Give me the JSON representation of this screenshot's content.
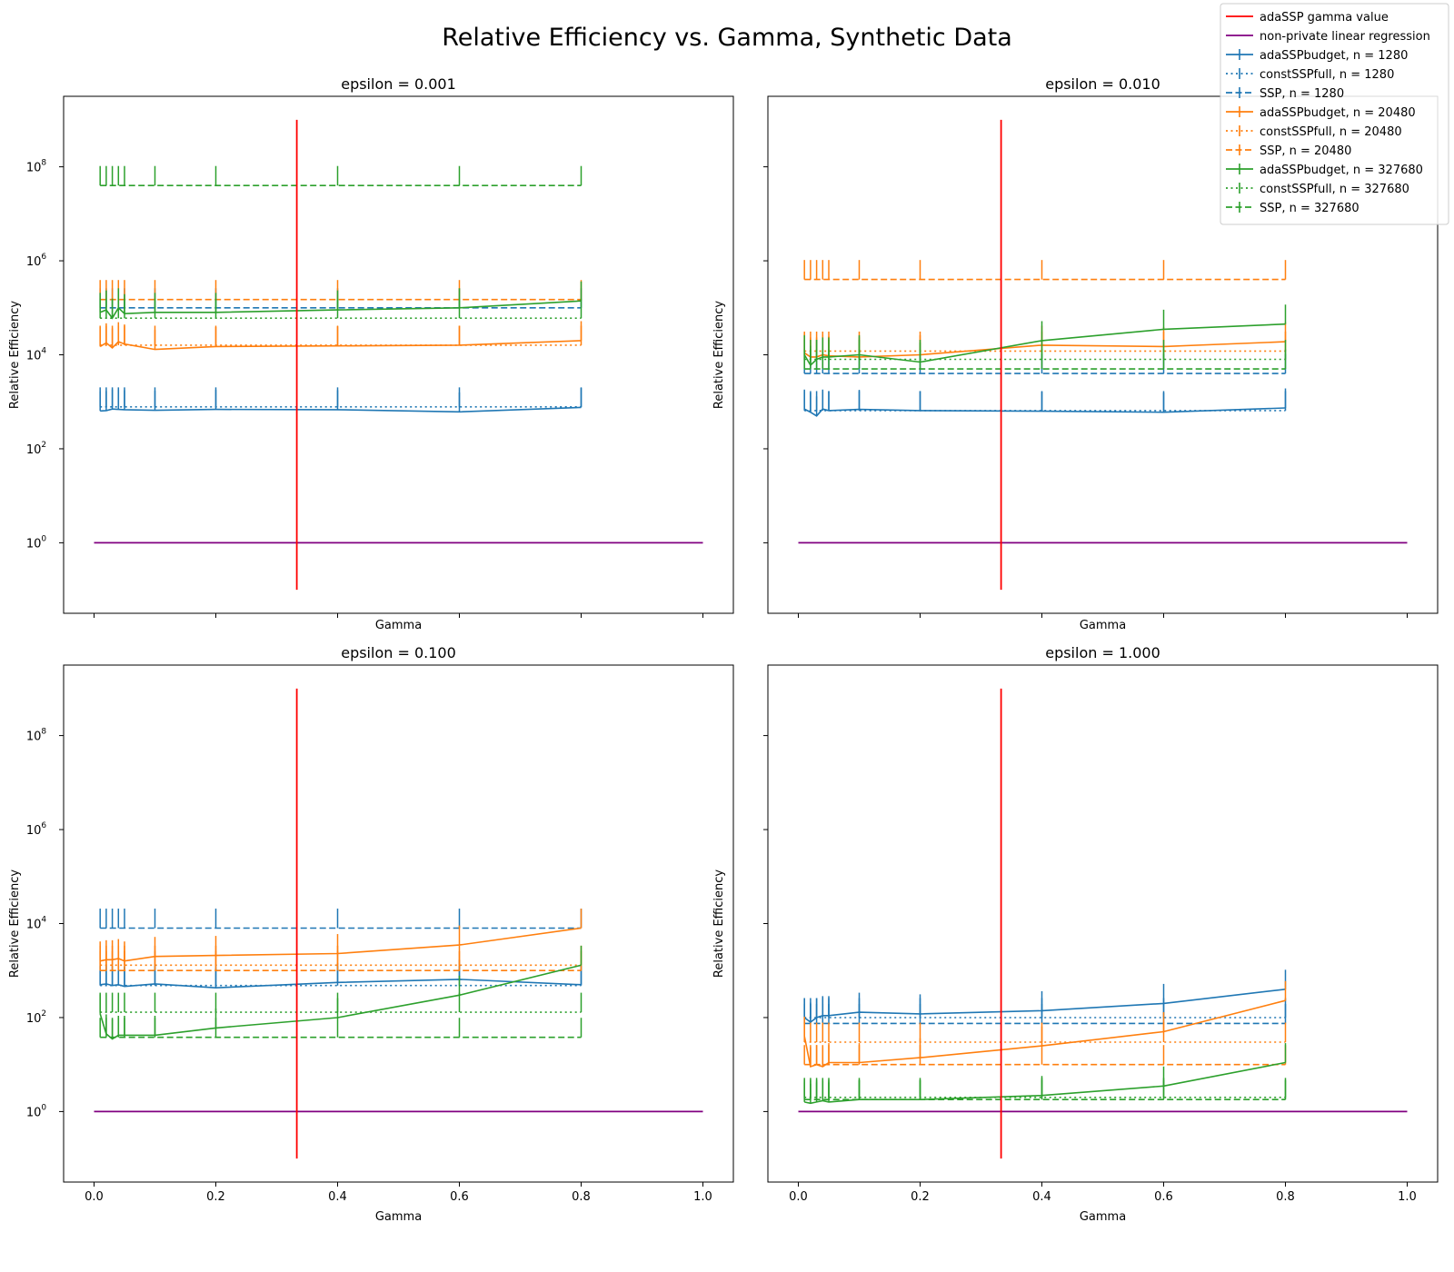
{
  "chart_data": {
    "type": "line",
    "title": "Relative Efficiency vs. Gamma, Synthetic Data",
    "x_scale": "linear",
    "y_scale": "log",
    "xlim": [
      -0.05,
      1.05
    ],
    "ylim_log10": [
      -1.5,
      9.5
    ],
    "x_tick_labels": [
      "0.0",
      "0.2",
      "0.4",
      "0.6",
      "0.8",
      "1.0"
    ],
    "x_tick_values": [
      0.0,
      0.2,
      0.4,
      0.6,
      0.8,
      1.0
    ],
    "y_tick_base": "10",
    "y_tick_exponents": [
      "0",
      "2",
      "4",
      "6",
      "8"
    ],
    "y_tick_values": [
      1,
      100,
      10000,
      1000000,
      100000000
    ],
    "gamma": [
      0.01,
      0.02,
      0.03,
      0.04,
      0.05,
      0.1,
      0.2,
      0.4,
      0.6,
      0.8
    ],
    "adassp_gamma_value": 0.333,
    "reference_line": {
      "x": [
        0.0,
        1.0
      ],
      "y": 1
    },
    "legend_position": "top-right",
    "legend": [
      {
        "label": "adaSSP gamma value",
        "color": "#ff0000",
        "style": "solid",
        "errorbar": false
      },
      {
        "label": "non-private linear regression",
        "color": "#800080",
        "style": "solid",
        "errorbar": false
      },
      {
        "label": "adaSSPbudget, n = 1280",
        "color": "#1f77b4",
        "style": "solid",
        "errorbar": true
      },
      {
        "label": "constSSPfull, n = 1280",
        "color": "#1f77b4",
        "style": "dotted",
        "errorbar": true
      },
      {
        "label": "SSP, n = 1280",
        "color": "#1f77b4",
        "style": "dashed",
        "errorbar": true
      },
      {
        "label": "adaSSPbudget, n = 20480",
        "color": "#ff7f0e",
        "style": "solid",
        "errorbar": true
      },
      {
        "label": "constSSPfull, n = 20480",
        "color": "#ff7f0e",
        "style": "dotted",
        "errorbar": true
      },
      {
        "label": "SSP, n = 20480",
        "color": "#ff7f0e",
        "style": "dashed",
        "errorbar": true
      },
      {
        "label": "adaSSPbudget, n = 327680",
        "color": "#2ca02c",
        "style": "solid",
        "errorbar": true
      },
      {
        "label": "constSSPfull, n = 327680",
        "color": "#2ca02c",
        "style": "dotted",
        "errorbar": true
      },
      {
        "label": "SSP, n = 327680",
        "color": "#2ca02c",
        "style": "dashed",
        "errorbar": true
      }
    ],
    "panels": [
      {
        "title": "epsilon = 0.001",
        "xlabel": "Gamma",
        "ylabel": "Relative Efficiency",
        "series": [
          {
            "name": "adaSSPbudget, n = 1280",
            "values": [
              640,
              650,
              700,
              690,
              680,
              660,
              690,
              680,
              610,
              760
            ]
          },
          {
            "name": "constSSPfull, n = 1280",
            "values": [
              780,
              780,
              780,
              780,
              780,
              780,
              780,
              780,
              780,
              780
            ]
          },
          {
            "name": "SSP, n = 1280",
            "values": [
              100000,
              100000,
              100000,
              100000,
              100000,
              100000,
              100000,
              100000,
              100000,
              100000
            ]
          },
          {
            "name": "adaSSPbudget, n = 20480",
            "values": [
              15000,
              18000,
              14000,
              19000,
              17000,
              13000,
              15000,
              15500,
              16000,
              20000
            ]
          },
          {
            "name": "constSSPfull, n = 20480",
            "values": [
              16000,
              16000,
              16000,
              16000,
              16000,
              16000,
              16000,
              16000,
              16000,
              16000
            ]
          },
          {
            "name": "SSP, n = 20480",
            "values": [
              150000,
              150000,
              150000,
              150000,
              150000,
              150000,
              150000,
              150000,
              150000,
              150000
            ]
          },
          {
            "name": "adaSSPbudget, n = 327680",
            "values": [
              80000,
              90000,
              60000,
              100000,
              75000,
              80000,
              80000,
              90000,
              100000,
              140000
            ]
          },
          {
            "name": "constSSPfull, n = 327680",
            "values": [
              60000,
              60000,
              60000,
              60000,
              60000,
              60000,
              60000,
              60000,
              60000,
              60000
            ]
          },
          {
            "name": "SSP, n = 327680",
            "values": [
              40000000,
              40000000,
              40000000,
              40000000,
              40000000,
              40000000,
              40000000,
              40000000,
              40000000,
              40000000
            ]
          }
        ]
      },
      {
        "title": "epsilon = 0.010",
        "xlabel": "Gamma",
        "ylabel": "Relative Efficiency",
        "series": [
          {
            "name": "adaSSPbudget, n = 1280",
            "values": [
              700,
              600,
              500,
              700,
              650,
              690,
              650,
              630,
              600,
              740
            ]
          },
          {
            "name": "constSSPfull, n = 1280",
            "values": [
              650,
              650,
              650,
              650,
              650,
              650,
              650,
              650,
              650,
              650
            ]
          },
          {
            "name": "SSP, n = 1280",
            "values": [
              4000,
              4000,
              4000,
              4000,
              4000,
              4000,
              4000,
              4000,
              4000,
              4000
            ]
          },
          {
            "name": "adaSSPbudget, n = 20480",
            "values": [
              11000,
              9000,
              9000,
              10000,
              9500,
              9000,
              10000,
              16000,
              15000,
              19000
            ]
          },
          {
            "name": "constSSPfull, n = 20480",
            "values": [
              12000,
              12000,
              12000,
              12000,
              12000,
              12000,
              12000,
              12000,
              12000,
              12000
            ]
          },
          {
            "name": "SSP, n = 20480",
            "values": [
              400000,
              400000,
              400000,
              400000,
              400000,
              400000,
              400000,
              400000,
              400000,
              400000
            ]
          },
          {
            "name": "adaSSPbudget, n = 327680",
            "values": [
              10000,
              6000,
              8000,
              9000,
              9000,
              10000,
              7000,
              20000,
              35000,
              45000
            ]
          },
          {
            "name": "constSSPfull, n = 327680",
            "values": [
              8000,
              8000,
              8000,
              8000,
              8000,
              8000,
              8000,
              8000,
              8000,
              8000
            ]
          },
          {
            "name": "SSP, n = 327680",
            "values": [
              5000,
              5000,
              5000,
              5000,
              5000,
              5000,
              5000,
              5000,
              5000,
              5000
            ]
          }
        ]
      },
      {
        "title": "epsilon = 0.100",
        "xlabel": "Gamma",
        "ylabel": "Relative Efficiency",
        "series": [
          {
            "name": "adaSSPbudget, n = 1280",
            "values": [
              500,
              520,
              480,
              500,
              460,
              520,
              430,
              560,
              650,
              500
            ]
          },
          {
            "name": "constSSPfull, n = 1280",
            "values": [
              480,
              480,
              480,
              480,
              480,
              480,
              480,
              480,
              480,
              480
            ]
          },
          {
            "name": "SSP, n = 1280",
            "values": [
              8000,
              8000,
              8000,
              8000,
              8000,
              8000,
              8000,
              8000,
              8000,
              8000
            ]
          },
          {
            "name": "adaSSPbudget, n = 20480",
            "values": [
              1600,
              1700,
              1700,
              1800,
              1600,
              2000,
              2100,
              2300,
              3500,
              8000
            ]
          },
          {
            "name": "constSSPfull, n = 20480",
            "values": [
              1300,
              1300,
              1300,
              1300,
              1300,
              1300,
              1300,
              1300,
              1300,
              1300
            ]
          },
          {
            "name": "SSP, n = 20480",
            "values": [
              1000,
              1000,
              1000,
              1000,
              1000,
              1000,
              1000,
              1000,
              1000,
              1000
            ]
          },
          {
            "name": "adaSSPbudget, n = 327680",
            "values": [
              120,
              45,
              35,
              42,
              42,
              42,
              60,
              100,
              300,
              1300
            ]
          },
          {
            "name": "constSSPfull, n = 327680",
            "values": [
              130,
              130,
              130,
              130,
              130,
              130,
              130,
              130,
              130,
              130
            ]
          },
          {
            "name": "SSP, n = 327680",
            "values": [
              38,
              38,
              38,
              38,
              38,
              38,
              38,
              38,
              38,
              38
            ]
          }
        ]
      },
      {
        "title": "epsilon = 1.000",
        "xlabel": "Gamma",
        "ylabel": "Relative Efficiency",
        "series": [
          {
            "name": "adaSSPbudget, n = 1280",
            "values": [
              100,
              80,
              100,
              110,
              110,
              130,
              120,
              140,
              200,
              400
            ]
          },
          {
            "name": "constSSPfull, n = 1280",
            "values": [
              100,
              100,
              100,
              100,
              100,
              100,
              100,
              100,
              100,
              100
            ]
          },
          {
            "name": "SSP, n = 1280",
            "values": [
              75,
              75,
              75,
              75,
              75,
              75,
              75,
              75,
              75,
              75
            ]
          },
          {
            "name": "adaSSPbudget, n = 20480",
            "values": [
              40,
              9,
              10,
              9,
              11,
              11,
              14,
              25,
              50,
              230
            ]
          },
          {
            "name": "constSSPfull, n = 20480",
            "values": [
              30,
              30,
              30,
              30,
              30,
              30,
              30,
              30,
              30,
              30
            ]
          },
          {
            "name": "SSP, n = 20480",
            "values": [
              10,
              10,
              10,
              10,
              10,
              10,
              10,
              10,
              10,
              10
            ]
          },
          {
            "name": "adaSSPbudget, n = 327680",
            "values": [
              1.6,
              1.5,
              1.6,
              1.7,
              1.6,
              1.8,
              1.8,
              2.2,
              3.5,
              11
            ]
          },
          {
            "name": "constSSPfull, n = 327680",
            "values": [
              2.0,
              2.0,
              2.0,
              2.0,
              2.0,
              2.0,
              2.0,
              2.0,
              2.0,
              2.0
            ]
          },
          {
            "name": "SSP, n = 327680",
            "values": [
              1.8,
              1.8,
              1.8,
              1.8,
              1.8,
              1.8,
              1.8,
              1.8,
              1.8,
              1.8
            ]
          }
        ]
      }
    ]
  }
}
